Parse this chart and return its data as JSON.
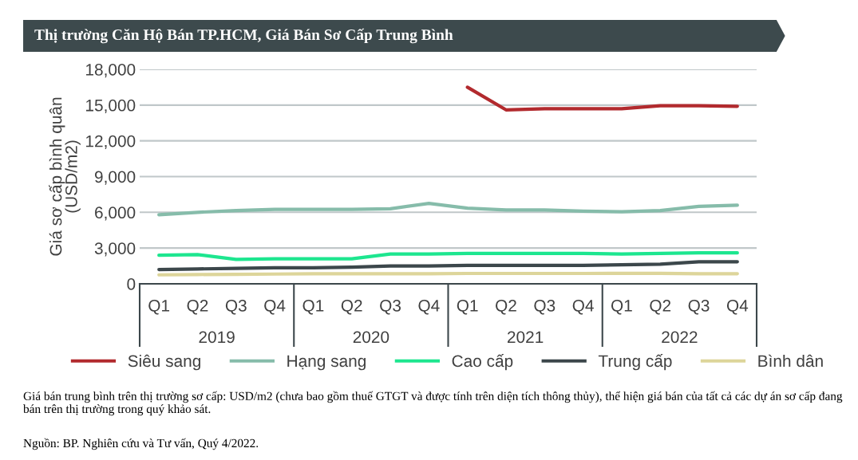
{
  "chart_data": {
    "type": "line",
    "title": "Thị trường Căn Hộ Bán TP.HCM, Giá Bán Sơ Cấp Trung Bình",
    "ylabel": "Giá sơ cấp bình quân\n(USD/m2)",
    "categories": [
      "Q1",
      "Q2",
      "Q3",
      "Q4",
      "Q1",
      "Q2",
      "Q3",
      "Q4",
      "Q1",
      "Q2",
      "Q3",
      "Q4",
      "Q1",
      "Q2",
      "Q3",
      "Q4"
    ],
    "series": [
      {
        "name": "Siêu sang",
        "color": "#b22a2e",
        "values": [
          null,
          null,
          null,
          null,
          null,
          null,
          null,
          null,
          16500,
          14600,
          14700,
          14700,
          14700,
          14950,
          14950,
          14900
        ]
      },
      {
        "name": "Hạng sang",
        "color": "#86bcaa",
        "values": [
          5800,
          6000,
          6150,
          6250,
          6250,
          6250,
          6300,
          6750,
          6350,
          6200,
          6200,
          6100,
          6050,
          6150,
          6500,
          6600
        ]
      },
      {
        "name": "Cao cấp",
        "color": "#1de68f",
        "values": [
          2400,
          2450,
          2050,
          2100,
          2100,
          2100,
          2500,
          2500,
          2550,
          2550,
          2550,
          2550,
          2500,
          2550,
          2600,
          2600
        ]
      },
      {
        "name": "Trung cấp",
        "color": "#3c474b",
        "values": [
          1200,
          1250,
          1300,
          1350,
          1350,
          1400,
          1500,
          1500,
          1550,
          1550,
          1550,
          1550,
          1600,
          1650,
          1850,
          1850
        ]
      },
      {
        "name": "Bình dân",
        "color": "#ddd59a",
        "values": [
          750,
          780,
          800,
          820,
          850,
          850,
          850,
          850,
          870,
          870,
          870,
          870,
          880,
          880,
          850,
          850
        ]
      }
    ],
    "ylim": [
      0,
      18000
    ],
    "yticks": [
      {
        "value": 0,
        "label": "0"
      },
      {
        "value": 3000,
        "label": "3,000"
      },
      {
        "value": 6000,
        "label": "6,000"
      },
      {
        "value": 9000,
        "label": "9,000"
      },
      {
        "value": 12000,
        "label": "12,000"
      },
      {
        "value": 15000,
        "label": "15,000"
      },
      {
        "value": 18000,
        "label": "18,000"
      }
    ],
    "grid": "y",
    "legend": "bottom",
    "marker": "none",
    "line_style": "solid",
    "annotations": [
      "2019",
      "2020",
      "2021",
      "2022",
      "Giá bán trung bình trên thị trường sơ cấp: USD/m2 (chưa bao gồm thuế GTGT và được tính trên diện tích thông thủy), thể hiện giá bán của tất cả các dự án sơ cấp đang bán trên thị trường trong quý khảo sát.",
      "Nguồn: BP. Nghiên cứu và Tư vấn, Quý 4/2022."
    ]
  }
}
